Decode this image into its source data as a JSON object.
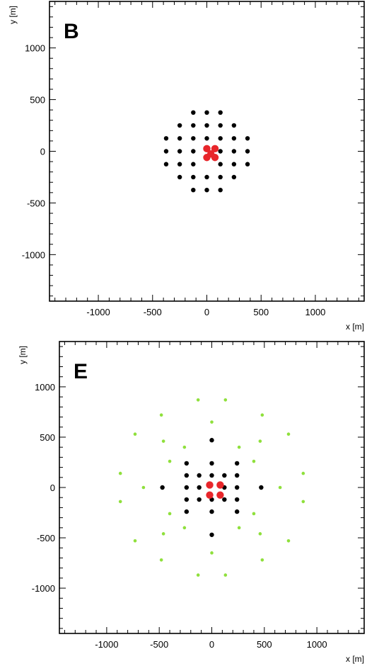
{
  "chart_data": [
    {
      "type": "scatter",
      "panel_label": "B",
      "xlabel": "x [m]",
      "ylabel": "y [m]",
      "xlim": [
        -1450,
        1450
      ],
      "ylim": [
        -1450,
        1450
      ],
      "x_ticks": [
        -1000,
        -500,
        0,
        500,
        1000
      ],
      "y_ticks": [
        1000,
        500,
        0,
        -500,
        -1000
      ],
      "grid": false,
      "series": [
        {
          "color": "#000000",
          "points": [
            [
              -250,
              250
            ],
            [
              -125,
              250
            ],
            [
              0,
              250
            ],
            [
              125,
              250
            ],
            [
              250,
              250
            ],
            [
              -375,
              125
            ],
            [
              -250,
              125
            ],
            [
              -125,
              125
            ],
            [
              0,
              125
            ],
            [
              125,
              125
            ],
            [
              250,
              125
            ],
            [
              375,
              125
            ],
            [
              -375,
              0
            ],
            [
              -250,
              0
            ],
            [
              -125,
              0
            ],
            [
              125,
              0
            ],
            [
              250,
              0
            ],
            [
              375,
              0
            ],
            [
              -375,
              -125
            ],
            [
              -250,
              -125
            ],
            [
              -125,
              -125
            ],
            [
              125,
              -125
            ],
            [
              250,
              -125
            ],
            [
              375,
              -125
            ],
            [
              -250,
              -250
            ],
            [
              -125,
              -250
            ],
            [
              0,
              -250
            ],
            [
              125,
              -250
            ],
            [
              250,
              -250
            ],
            [
              -125,
              375
            ],
            [
              0,
              375
            ],
            [
              125,
              375
            ],
            [
              -125,
              -375
            ],
            [
              0,
              -375
            ],
            [
              125,
              -375
            ]
          ]
        },
        {
          "color": "#e8262b",
          "points": [
            [
              0,
              25
            ],
            [
              75,
              25
            ],
            [
              37,
              -25
            ],
            [
              0,
              -60
            ],
            [
              75,
              -60
            ]
          ]
        }
      ]
    },
    {
      "type": "scatter",
      "panel_label": "E",
      "xlabel": "x [m]",
      "ylabel": "y [m]",
      "xlim": [
        -1450,
        1450
      ],
      "ylim": [
        -1450,
        1450
      ],
      "x_ticks": [
        -1000,
        -500,
        0,
        500,
        1000
      ],
      "y_ticks": [
        1000,
        500,
        0,
        -500,
        -1000
      ],
      "grid": false,
      "series": [
        {
          "color": "#000000",
          "points": [
            [
              -240,
              240
            ],
            [
              240,
              240
            ],
            [
              -240,
              -240
            ],
            [
              240,
              -240
            ],
            [
              0,
              470
            ],
            [
              0,
              -470
            ],
            [
              -470,
              0
            ],
            [
              470,
              0
            ],
            [
              0,
              240
            ],
            [
              0,
              -240
            ],
            [
              -240,
              0
            ],
            [
              240,
              0
            ],
            [
              -120,
              120
            ],
            [
              0,
              120
            ],
            [
              120,
              120
            ],
            [
              -240,
              120
            ],
            [
              240,
              120
            ],
            [
              -240,
              -120
            ],
            [
              240,
              -120
            ],
            [
              -120,
              0
            ],
            [
              120,
              0
            ],
            [
              -120,
              -120
            ],
            [
              0,
              -120
            ],
            [
              120,
              -120
            ]
          ]
        },
        {
          "color": "#e8262b",
          "points": [
            [
              -20,
              25
            ],
            [
              80,
              25
            ],
            [
              -20,
              -75
            ],
            [
              80,
              -75
            ]
          ]
        },
        {
          "color": "#8fe03c",
          "points": [
            [
              -130,
              870
            ],
            [
              130,
              870
            ],
            [
              -480,
              720
            ],
            [
              480,
              720
            ],
            [
              -730,
              530
            ],
            [
              730,
              530
            ],
            [
              -870,
              140
            ],
            [
              870,
              140
            ],
            [
              -870,
              -140
            ],
            [
              870,
              -140
            ],
            [
              -730,
              -530
            ],
            [
              730,
              -530
            ],
            [
              -480,
              -720
            ],
            [
              480,
              -720
            ],
            [
              -130,
              -870
            ],
            [
              130,
              -870
            ],
            [
              0,
              650
            ],
            [
              0,
              -650
            ],
            [
              -650,
              0
            ],
            [
              650,
              0
            ],
            [
              -260,
              400
            ],
            [
              260,
              400
            ],
            [
              -400,
              260
            ],
            [
              400,
              260
            ],
            [
              -460,
              460
            ],
            [
              460,
              460
            ],
            [
              -400,
              -260
            ],
            [
              400,
              -260
            ],
            [
              -260,
              -400
            ],
            [
              260,
              -400
            ],
            [
              -460,
              -460
            ],
            [
              460,
              -460
            ]
          ]
        }
      ]
    }
  ]
}
